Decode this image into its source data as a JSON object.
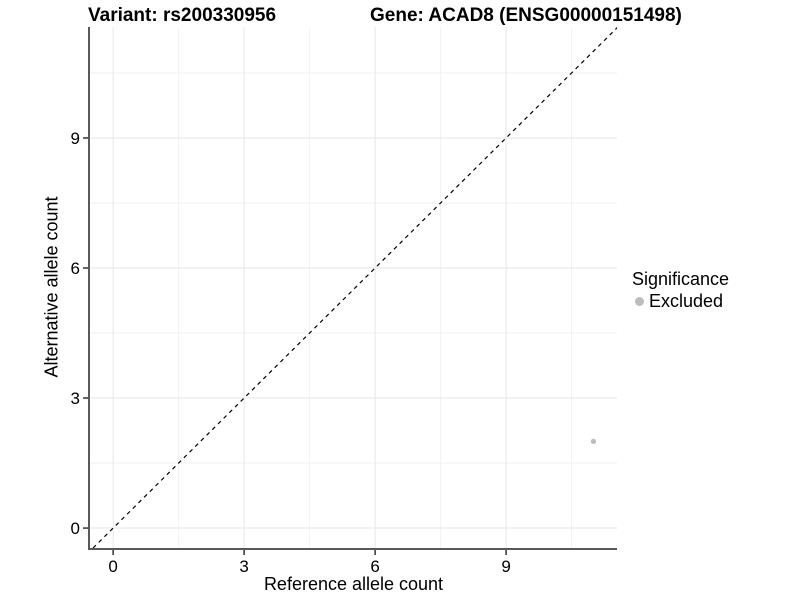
{
  "titles": {
    "variant": "Variant: rs200330956",
    "gene": "Gene: ACAD8 (ENSG00000151498)"
  },
  "axes": {
    "x_label": "Reference allele count",
    "y_label": "Alternative allele count"
  },
  "legend": {
    "title": "Significance",
    "items": [
      {
        "label": "Excluded",
        "color": "#bdbdbd"
      }
    ]
  },
  "colors": {
    "axis_line": "#595959",
    "tick_mark": "#404040",
    "grid_major": "#e6e6e6",
    "grid_minor": "#f2f2f2",
    "reference_line": "#000000",
    "excluded_point": "#bdbdbd",
    "background": "#ffffff"
  },
  "chart_data": {
    "type": "scatter",
    "title": "Variant: rs200330956   |   Gene: ACAD8 (ENSG00000151498)",
    "xlabel": "Reference allele count",
    "ylabel": "Alternative allele count",
    "xlim": [
      -0.53,
      11.54
    ],
    "ylim": [
      -0.46,
      11.56
    ],
    "x_ticks": [
      0,
      3,
      6,
      9
    ],
    "y_ticks": [
      0,
      3,
      6,
      9
    ],
    "x_minor_ticks": [
      1.5,
      4.5,
      7.5,
      10.5
    ],
    "y_minor_ticks": [
      1.5,
      4.5,
      7.5,
      10.5
    ],
    "grid": true,
    "legend_position": "right",
    "series": [
      {
        "name": "Excluded",
        "color": "#bdbdbd",
        "point_radius": 2.6,
        "points": [
          [
            11,
            2
          ]
        ]
      }
    ],
    "reference_line": {
      "kind": "y=x",
      "style": "dashed",
      "dash": [
        4,
        4
      ],
      "color": "#000000",
      "width": 1.2
    }
  }
}
